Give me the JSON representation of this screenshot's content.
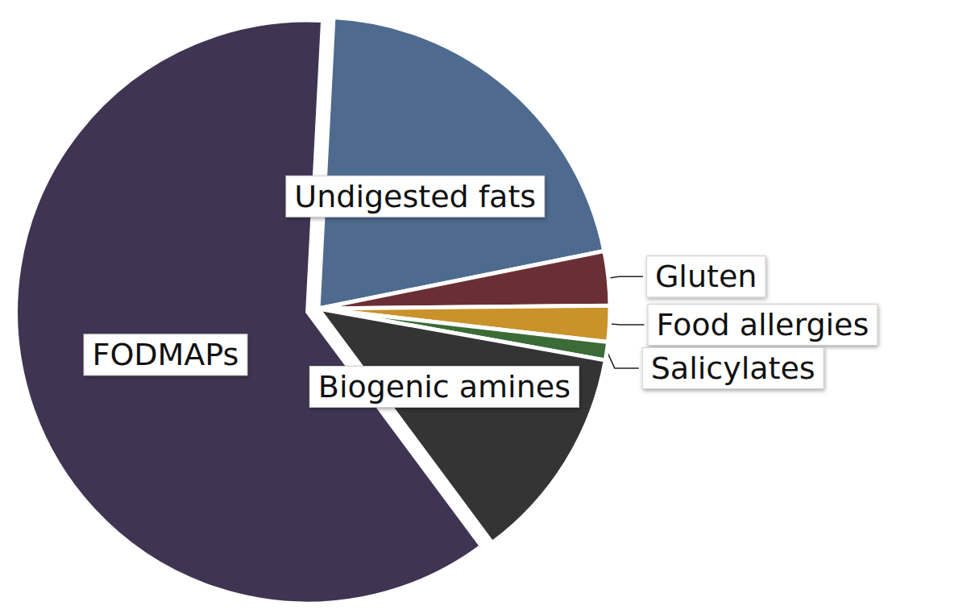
{
  "chart_data": {
    "type": "pie",
    "categories": [
      "Undigested fats",
      "Gluten",
      "Food allergies",
      "Salicylates",
      "Biogenic amines",
      "FODMAPs"
    ],
    "values": [
      21,
      3,
      2,
      1,
      12,
      61
    ],
    "colors": [
      "#4e6b8f",
      "#6a2f35",
      "#c9922b",
      "#3b6b36",
      "#343434",
      "#3f3553"
    ]
  }
}
